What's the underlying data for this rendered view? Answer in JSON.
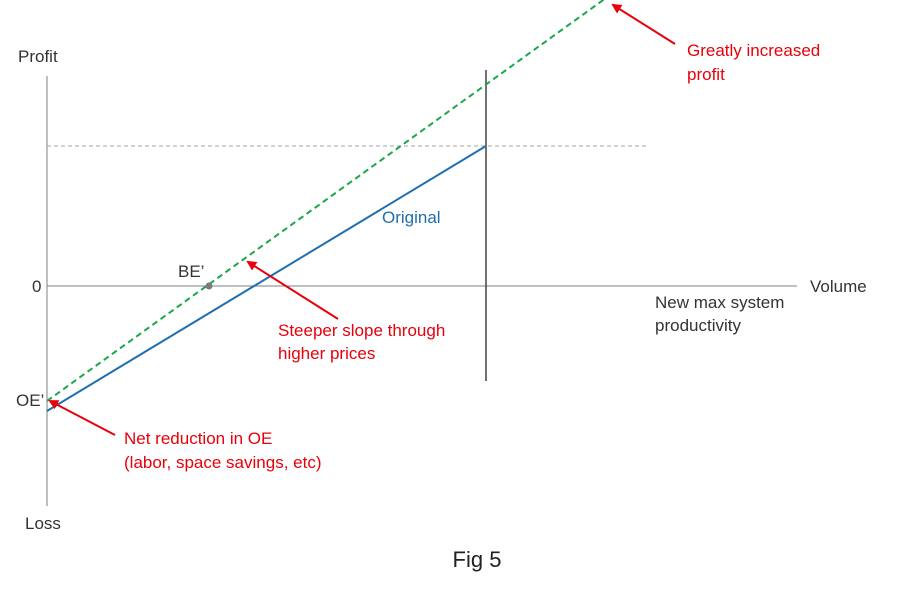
{
  "colors": {
    "axis": "#7f7f7f",
    "original_line": "#1f6fb0",
    "new_line": "#1aa64a",
    "annotation": "#e8000b",
    "capacity_thin": "#444444",
    "capacity_thick": "#262626",
    "reference_dashes": "#a6a6a6",
    "be_point": "#7a7a7a"
  },
  "axes": {
    "y_top_label": "Profit",
    "y_bottom_label": "Loss",
    "x_label": "Volume",
    "zero_label": "0"
  },
  "lines": {
    "original_label": "Original"
  },
  "points": {
    "be_label": "BE’",
    "oe_label": "OE’"
  },
  "annotations": {
    "profit": [
      "Greatly increased",
      "profit"
    ],
    "slope": [
      "Steeper slope through",
      "higher prices"
    ],
    "oe": [
      "Net reduction in OE",
      "(labor, space savings, etc)"
    ],
    "capacity": [
      "New max system",
      "productivity"
    ]
  },
  "caption": "Fig 5"
}
